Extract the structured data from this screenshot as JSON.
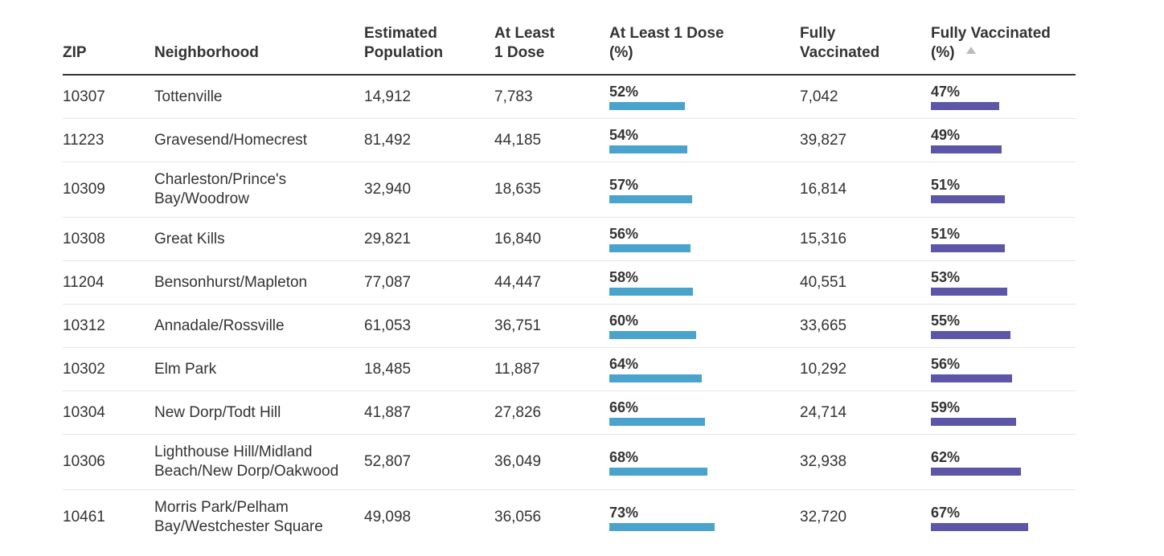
{
  "colors": {
    "dose_bar": "#4aa3cc",
    "full_bar": "#5b56a8",
    "sort_arrow": "#bbbbbb",
    "text": "#333333"
  },
  "headers": {
    "zip": "ZIP",
    "neighborhood": "Neighborhood",
    "population_line1": "Estimated",
    "population_line2": "Population",
    "dose_line1": "At Least",
    "dose_line2": "1 Dose",
    "dose_pct_line1": "At Least 1 Dose",
    "dose_pct_line2": "(%)",
    "full_line1": "Fully",
    "full_line2": "Vaccinated",
    "full_pct_line1": "Fully Vaccinated",
    "full_pct_line2": "(%)",
    "sort_icon": "sort-ascending-icon"
  },
  "rows": [
    {
      "zip": "10307",
      "neighborhood": "Tottenville",
      "population": "14,912",
      "dose": "7,783",
      "dose_pct": "52%",
      "dose_pct_value": 52,
      "full": "7,042",
      "full_pct": "47%",
      "full_pct_value": 47
    },
    {
      "zip": "11223",
      "neighborhood": "Gravesend/Homecrest",
      "population": "81,492",
      "dose": "44,185",
      "dose_pct": "54%",
      "dose_pct_value": 54,
      "full": "39,827",
      "full_pct": "49%",
      "full_pct_value": 49
    },
    {
      "zip": "10309",
      "neighborhood": "Charleston/Prince's Bay/Woodrow",
      "population": "32,940",
      "dose": "18,635",
      "dose_pct": "57%",
      "dose_pct_value": 57,
      "full": "16,814",
      "full_pct": "51%",
      "full_pct_value": 51
    },
    {
      "zip": "10308",
      "neighborhood": "Great Kills",
      "population": "29,821",
      "dose": "16,840",
      "dose_pct": "56%",
      "dose_pct_value": 56,
      "full": "15,316",
      "full_pct": "51%",
      "full_pct_value": 51
    },
    {
      "zip": "11204",
      "neighborhood": "Bensonhurst/Mapleton",
      "population": "77,087",
      "dose": "44,447",
      "dose_pct": "58%",
      "dose_pct_value": 58,
      "full": "40,551",
      "full_pct": "53%",
      "full_pct_value": 53
    },
    {
      "zip": "10312",
      "neighborhood": "Annadale/Rossville",
      "population": "61,053",
      "dose": "36,751",
      "dose_pct": "60%",
      "dose_pct_value": 60,
      "full": "33,665",
      "full_pct": "55%",
      "full_pct_value": 55
    },
    {
      "zip": "10302",
      "neighborhood": "Elm Park",
      "population": "18,485",
      "dose": "11,887",
      "dose_pct": "64%",
      "dose_pct_value": 64,
      "full": "10,292",
      "full_pct": "56%",
      "full_pct_value": 56
    },
    {
      "zip": "10304",
      "neighborhood": "New Dorp/Todt Hill",
      "population": "41,887",
      "dose": "27,826",
      "dose_pct": "66%",
      "dose_pct_value": 66,
      "full": "24,714",
      "full_pct": "59%",
      "full_pct_value": 59
    },
    {
      "zip": "10306",
      "neighborhood": "Lighthouse Hill/Midland Beach/New Dorp/Oakwood",
      "population": "52,807",
      "dose": "36,049",
      "dose_pct": "68%",
      "dose_pct_value": 68,
      "full": "32,938",
      "full_pct": "62%",
      "full_pct_value": 62
    },
    {
      "zip": "10461",
      "neighborhood": "Morris Park/Pelham Bay/Westchester Square",
      "population": "49,098",
      "dose": "36,056",
      "dose_pct": "73%",
      "dose_pct_value": 73,
      "full": "32,720",
      "full_pct": "67%",
      "full_pct_value": 67
    }
  ]
}
